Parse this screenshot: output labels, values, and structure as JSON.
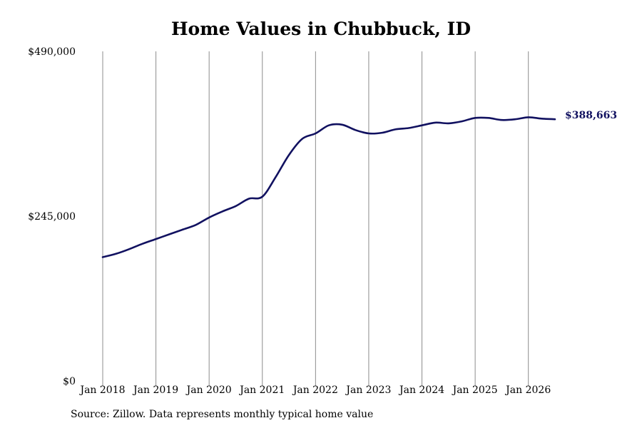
{
  "chart_data": {
    "type": "line",
    "title": "Home Values in Chubbuck, ID",
    "source": "Source: Zillow. Data represents monthly typical home value",
    "y_ticks": [
      {
        "value": 490000,
        "label": "$490,000"
      },
      {
        "value": 245000,
        "label": "$245,000"
      },
      {
        "value": 0,
        "label": "$0"
      }
    ],
    "ylim": [
      0,
      490000
    ],
    "xlim": [
      "2018-01",
      "2026-07"
    ],
    "x_ticks": [
      {
        "value": "2018-01",
        "label": "Jan 2018"
      },
      {
        "value": "2019-01",
        "label": "Jan 2019"
      },
      {
        "value": "2020-01",
        "label": "Jan 2020"
      },
      {
        "value": "2021-01",
        "label": "Jan 2021"
      },
      {
        "value": "2022-01",
        "label": "Jan 2022"
      },
      {
        "value": "2023-01",
        "label": "Jan 2023"
      },
      {
        "value": "2024-01",
        "label": "Jan 2024"
      },
      {
        "value": "2025-01",
        "label": "Jan 2025"
      },
      {
        "value": "2026-01",
        "label": "Jan 2026"
      }
    ],
    "grid": "vertical",
    "line_color": "#111160",
    "end_label": "$388,663",
    "series": [
      {
        "name": "",
        "points": [
          [
            "2018-01",
            184000
          ],
          [
            "2018-04",
            189000
          ],
          [
            "2018-07",
            196000
          ],
          [
            "2018-10",
            204000
          ],
          [
            "2019-01",
            211000
          ],
          [
            "2019-04",
            218000
          ],
          [
            "2019-07",
            225000
          ],
          [
            "2019-10",
            232000
          ],
          [
            "2020-01",
            243000
          ],
          [
            "2020-04",
            252000
          ],
          [
            "2020-07",
            260000
          ],
          [
            "2020-10",
            271000
          ],
          [
            "2021-01",
            274000
          ],
          [
            "2021-04",
            303000
          ],
          [
            "2021-07",
            336000
          ],
          [
            "2021-10",
            360000
          ],
          [
            "2022-01",
            368000
          ],
          [
            "2022-04",
            380000
          ],
          [
            "2022-07",
            381000
          ],
          [
            "2022-10",
            373000
          ],
          [
            "2023-01",
            368000
          ],
          [
            "2023-04",
            369000
          ],
          [
            "2023-07",
            374000
          ],
          [
            "2023-10",
            376000
          ],
          [
            "2024-01",
            380000
          ],
          [
            "2024-04",
            384000
          ],
          [
            "2024-07",
            383000
          ],
          [
            "2024-10",
            386000
          ],
          [
            "2025-01",
            391000
          ],
          [
            "2025-04",
            391000
          ],
          [
            "2025-07",
            388000
          ],
          [
            "2025-10",
            389000
          ],
          [
            "2026-01",
            392000
          ],
          [
            "2026-04",
            390000
          ],
          [
            "2026-07",
            389000
          ]
        ]
      }
    ]
  }
}
